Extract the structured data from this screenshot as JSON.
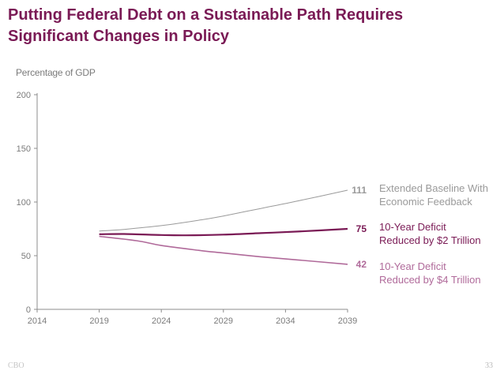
{
  "title_lines": [
    "Putting Federal Debt on a Sustainable Path Requires",
    "Significant Changes in Policy"
  ],
  "footer": {
    "source": "CBO",
    "page_number": "33"
  },
  "colors": {
    "title": "#7a1a55",
    "baseline": "#9a9a9a",
    "deficit2": "#7a1a55",
    "deficit4": "#b06a9a",
    "axis": "#8c8c8c"
  },
  "chart_data": {
    "type": "line",
    "title": "",
    "ylabel": "Percentage of GDP",
    "xlabel": "",
    "xlim": [
      2014,
      2039
    ],
    "ylim": [
      0,
      200
    ],
    "x_ticks": [
      "2014",
      "2019",
      "2024",
      "2029",
      "2034",
      "2039"
    ],
    "y_ticks": [
      "0",
      "50",
      "100",
      "150",
      "200"
    ],
    "series": [
      {
        "name": "Extended Baseline With Economic Feedback",
        "label_lines": [
          "Extended Baseline With",
          "Economic Feedback"
        ],
        "end_label": "111",
        "color": "#9a9a9a",
        "x": [
          2019,
          2021,
          2024,
          2027,
          2029,
          2032,
          2035,
          2039
        ],
        "y": [
          73,
          74.5,
          78,
          83,
          87,
          94,
          101,
          111
        ]
      },
      {
        "name": "10-Year Deficit Reduced by $2 Trillion",
        "label_lines": [
          "10-Year Deficit",
          "Reduced by $2 Trillion"
        ],
        "end_label": "75",
        "color": "#7a1a55",
        "x": [
          2019,
          2021,
          2024,
          2026,
          2029,
          2032,
          2035,
          2039
        ],
        "y": [
          70,
          70.2,
          69.3,
          69,
          69.6,
          71,
          72.5,
          75
        ]
      },
      {
        "name": "10-Year Deficit Reduced by $4 Trillion",
        "label_lines": [
          "10-Year Deficit",
          "Reduced by $4 Trillion"
        ],
        "end_label": "42",
        "color": "#b06a9a",
        "x": [
          2019,
          2022,
          2024,
          2027,
          2029,
          2032,
          2035,
          2039
        ],
        "y": [
          68,
          64,
          59.5,
          55,
          52.5,
          49,
          46,
          42
        ]
      }
    ]
  }
}
